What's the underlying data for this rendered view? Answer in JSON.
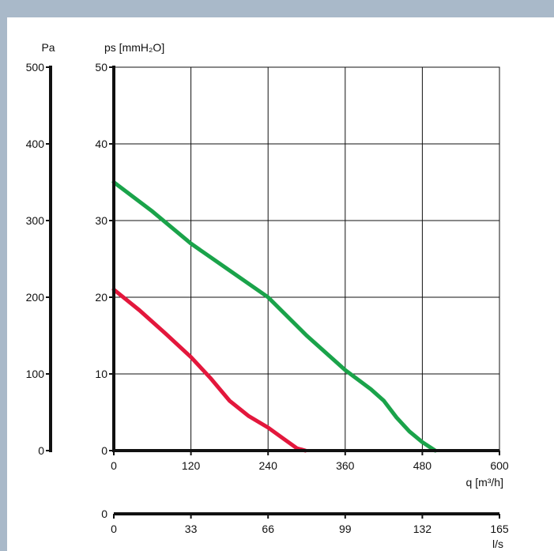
{
  "chart_data": {
    "type": "line",
    "pa_axis": {
      "label": "Pa",
      "ticks": [
        0,
        100,
        200,
        300,
        400,
        500
      ],
      "range": [
        0,
        500
      ]
    },
    "mm_axis": {
      "label": "ps [mmH₂O]",
      "ticks": [
        0,
        10,
        20,
        30,
        40,
        50
      ],
      "range": [
        0,
        50
      ]
    },
    "x_axis": {
      "label": "q [m³/h]",
      "ticks": [
        0,
        120,
        240,
        360,
        480,
        600
      ],
      "range": [
        0,
        600
      ]
    },
    "ls_axis": {
      "label": "l/s",
      "zero": "0",
      "ticks": [
        0,
        33,
        66,
        99,
        132,
        165
      ],
      "range": [
        0,
        165
      ]
    },
    "grid": true,
    "series": [
      {
        "color": "#1aa34a",
        "points": [
          [
            0,
            35
          ],
          [
            60,
            31.2
          ],
          [
            120,
            27
          ],
          [
            180,
            23.5
          ],
          [
            240,
            20
          ],
          [
            300,
            15
          ],
          [
            360,
            10.5
          ],
          [
            400,
            8
          ],
          [
            420,
            6.5
          ],
          [
            440,
            4.3
          ],
          [
            460,
            2.5
          ],
          [
            480,
            1.1
          ],
          [
            500,
            0
          ]
        ]
      },
      {
        "color": "#e3173c",
        "points": [
          [
            0,
            21
          ],
          [
            40,
            18.3
          ],
          [
            80,
            15.3
          ],
          [
            120,
            12.2
          ],
          [
            150,
            9.5
          ],
          [
            180,
            6.5
          ],
          [
            210,
            4.5
          ],
          [
            240,
            3
          ],
          [
            265,
            1.5
          ],
          [
            285,
            0.3
          ],
          [
            298,
            0
          ]
        ]
      }
    ]
  }
}
